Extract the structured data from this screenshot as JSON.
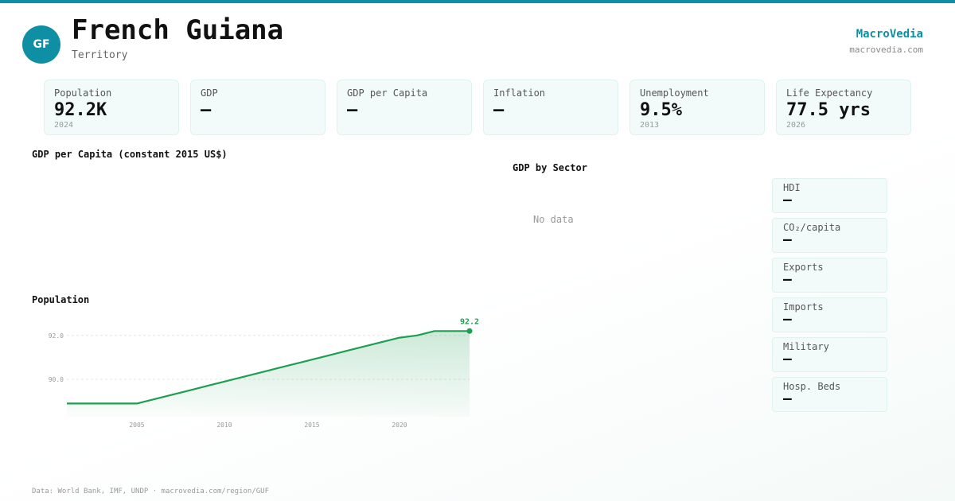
{
  "header": {
    "badge": "GF",
    "title": "French Guiana",
    "subtitle": "Territory",
    "brand": "MacroVedia",
    "brand_url": "macrovedia.com",
    "accent_color": "#0e8fa3"
  },
  "stats": [
    {
      "label": "Population",
      "value": "92.2K",
      "year": "2024"
    },
    {
      "label": "GDP",
      "value": "—",
      "year": ""
    },
    {
      "label": "GDP per Capita",
      "value": "—",
      "year": ""
    },
    {
      "label": "Inflation",
      "value": "—",
      "year": ""
    },
    {
      "label": "Unemployment",
      "value": "9.5%",
      "year": "2013"
    },
    {
      "label": "Life Expectancy",
      "value": "77.5 yrs",
      "year": "2026"
    }
  ],
  "sections": {
    "gdp_per_capita_title": "GDP per Capita (constant 2015 US$)",
    "population_title": "Population",
    "gdp_sector_title": "GDP by Sector",
    "gdp_sector_empty": "No data"
  },
  "side_metrics": [
    {
      "label": "HDI",
      "value": "—"
    },
    {
      "label": "CO₂/capita",
      "value": "—"
    },
    {
      "label": "Exports",
      "value": "—"
    },
    {
      "label": "Imports",
      "value": "—"
    },
    {
      "label": "Military",
      "value": "—"
    },
    {
      "label": "Hosp. Beds",
      "value": "—"
    }
  ],
  "chart_data": {
    "type": "area",
    "title": "Population",
    "xlabel": "",
    "ylabel": "",
    "x": [
      2001,
      2002,
      2003,
      2004,
      2005,
      2006,
      2007,
      2008,
      2009,
      2010,
      2011,
      2012,
      2013,
      2014,
      2015,
      2016,
      2017,
      2018,
      2019,
      2020,
      2021,
      2022,
      2023,
      2024
    ],
    "series": [
      {
        "values": [
          88.9,
          88.9,
          88.9,
          88.9,
          88.9,
          89.1,
          89.3,
          89.5,
          89.7,
          89.9,
          90.1,
          90.3,
          90.5,
          90.7,
          90.9,
          91.1,
          91.3,
          91.5,
          91.7,
          91.9,
          92.0,
          92.2,
          92.2,
          92.2
        ],
        "color": "#1e9e50"
      }
    ],
    "yticks": [
      "92.0",
      "90.0"
    ],
    "xticks": [
      "2005",
      "2010",
      "2015",
      "2020"
    ],
    "last_value_label": "92.2",
    "grid": true,
    "line_color": "#1e9e50"
  },
  "footer": "Data: World Bank, IMF, UNDP · macrovedia.com/region/GUF"
}
